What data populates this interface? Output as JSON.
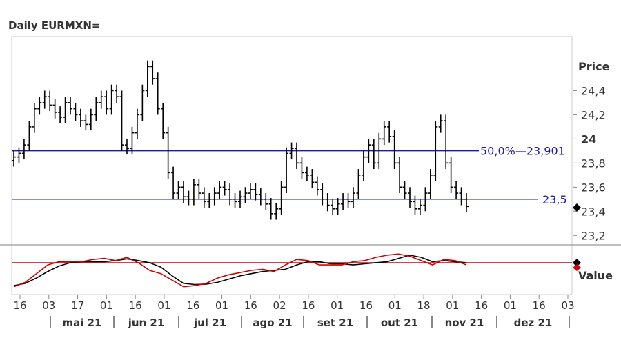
{
  "chart_data": {
    "type": "candlestick",
    "title": "Daily EURMXN=",
    "price_panel": {
      "ylabel": "Price",
      "ylim": [
        23.15,
        24.82
      ],
      "y_ticks": [
        {
          "value": 24.4,
          "label": "24,4",
          "bold": false
        },
        {
          "value": 24.2,
          "label": "24,2",
          "bold": false
        },
        {
          "value": 24.0,
          "label": "24",
          "bold": true
        },
        {
          "value": 23.8,
          "label": "23,8",
          "bold": false
        },
        {
          "value": 23.6,
          "label": "23,6",
          "bold": false
        },
        {
          "value": 23.4,
          "label": "23,4",
          "bold": false
        },
        {
          "value": 23.2,
          "label": "23,2",
          "bold": false
        }
      ],
      "levels": [
        {
          "value": 23.901,
          "label": "50,0%—23,901",
          "color": "#1a1ab0"
        },
        {
          "value": 23.5,
          "label": "23,5",
          "color": "#1a1ab0"
        }
      ],
      "last_price": 23.43
    },
    "indicator_panel": {
      "ylabel": "Value",
      "ylim": [
        -1.3,
        0.6
      ],
      "zero_line": 0,
      "zero_color": "#d40000",
      "series": [
        {
          "color": "#000000",
          "values": [
            -1.05,
            -0.95,
            -0.7,
            -0.4,
            -0.15,
            0.0,
            0.05,
            0.05,
            0.05,
            0.1,
            0.18,
            0.1,
            0.0,
            -0.2,
            -0.6,
            -0.95,
            -1.0,
            -0.98,
            -0.9,
            -0.75,
            -0.6,
            -0.5,
            -0.4,
            -0.35,
            -0.3,
            -0.1,
            0.05,
            0.05,
            -0.05,
            -0.05,
            -0.1,
            -0.05,
            0.0,
            0.05,
            0.2,
            0.35,
            0.25,
            0.05,
            0.1,
            0.05,
            0.0
          ]
        },
        {
          "color": "#d40000",
          "values": [
            -1.1,
            -0.9,
            -0.5,
            -0.1,
            0.05,
            0.05,
            0.05,
            0.15,
            0.2,
            0.1,
            0.25,
            0.0,
            -0.35,
            -0.5,
            -0.8,
            -1.1,
            -1.05,
            -0.95,
            -0.7,
            -0.55,
            -0.45,
            -0.35,
            -0.3,
            -0.4,
            -0.1,
            0.15,
            0.1,
            -0.1,
            -0.1,
            -0.1,
            0.05,
            0.1,
            0.25,
            0.35,
            0.4,
            0.3,
            0.1,
            -0.1,
            0.15,
            0.1,
            -0.1
          ]
        }
      ]
    },
    "x_ticks": [
      "16",
      "03",
      "17",
      "01",
      "16",
      "01",
      "16",
      "01",
      "16",
      "02",
      "16",
      "01",
      "16",
      "01",
      "18",
      "01",
      "16",
      "01",
      "16",
      "03"
    ],
    "months": [
      "mai 21",
      "jun 21",
      "jul 21",
      "ago 21",
      "set 21",
      "out 21",
      "nov 21",
      "dez 21"
    ],
    "candles_approx_closes": [
      23.85,
      23.88,
      23.95,
      24.1,
      24.25,
      24.3,
      24.35,
      24.28,
      24.22,
      24.18,
      24.3,
      24.25,
      24.2,
      24.15,
      24.12,
      24.2,
      24.3,
      24.35,
      24.25,
      24.4,
      24.35,
      23.95,
      23.92,
      24.05,
      24.2,
      24.4,
      24.6,
      24.5,
      24.25,
      24.05,
      23.72,
      23.55,
      23.6,
      23.52,
      23.5,
      23.62,
      23.55,
      23.48,
      23.5,
      23.55,
      23.6,
      23.58,
      23.5,
      23.48,
      23.52,
      23.55,
      23.58,
      23.54,
      23.5,
      23.46,
      23.38,
      23.42,
      23.6,
      23.88,
      23.92,
      23.8,
      23.72,
      23.7,
      23.64,
      23.58,
      23.5,
      23.45,
      23.42,
      23.46,
      23.5,
      23.48,
      23.55,
      23.7,
      23.85,
      23.95,
      23.8,
      24.0,
      24.1,
      24.02,
      23.8,
      23.6,
      23.55,
      23.48,
      23.42,
      23.45,
      23.55,
      23.7,
      24.1,
      24.15,
      23.8,
      23.6,
      23.55,
      23.5,
      23.44
    ]
  }
}
